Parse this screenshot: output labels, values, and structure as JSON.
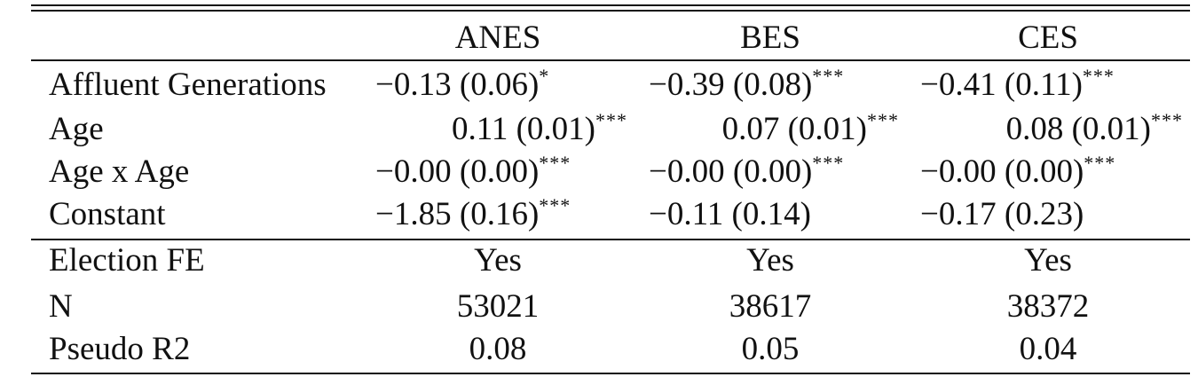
{
  "columns": [
    "",
    "ANES",
    "BES",
    "CES"
  ],
  "coef_rows": [
    {
      "label": "Affluent Generations",
      "cells": [
        {
          "value": "−0.13 (0.06)",
          "stars": "*"
        },
        {
          "value": "−0.39 (0.08)",
          "stars": "***"
        },
        {
          "value": "−0.41 (0.11)",
          "stars": "***"
        }
      ]
    },
    {
      "label": "Age",
      "cells": [
        {
          "value": "0.11 (0.01)",
          "stars": "***"
        },
        {
          "value": "0.07 (0.01)",
          "stars": "***"
        },
        {
          "value": "0.08 (0.01)",
          "stars": "***"
        }
      ]
    },
    {
      "label": "Age x Age",
      "cells": [
        {
          "value": "−0.00 (0.00)",
          "stars": "***"
        },
        {
          "value": "−0.00 (0.00)",
          "stars": "***"
        },
        {
          "value": "−0.00 (0.00)",
          "stars": "***"
        }
      ]
    },
    {
      "label": "Constant",
      "cells": [
        {
          "value": "−1.85 (0.16)",
          "stars": "***"
        },
        {
          "value": "−0.11 (0.14)",
          "stars": ""
        },
        {
          "value": "−0.17 (0.23)",
          "stars": ""
        }
      ]
    }
  ],
  "stat_rows": [
    {
      "label": "Election FE",
      "cells": [
        "Yes",
        "Yes",
        "Yes"
      ]
    },
    {
      "label": "N",
      "cells": [
        "53021",
        "38617",
        "38372"
      ]
    },
    {
      "label": "Pseudo R2",
      "cells": [
        "0.08",
        "0.05",
        "0.04"
      ]
    }
  ]
}
